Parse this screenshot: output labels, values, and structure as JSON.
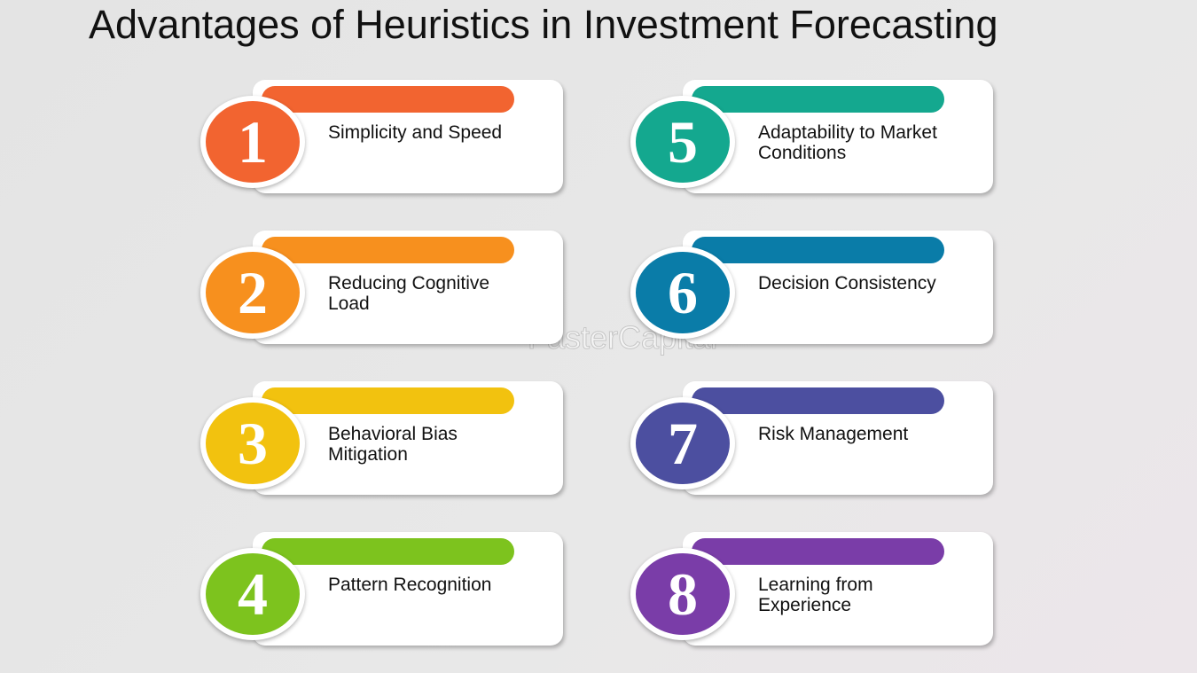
{
  "title": "Advantages of Heuristics in Investment Forecasting",
  "watermark": "FasterCapital",
  "items": [
    {
      "number": 1,
      "label": "Simplicity and Speed",
      "color": "#f26430"
    },
    {
      "number": 2,
      "label": "Reducing Cognitive Load",
      "color": "#f7901e"
    },
    {
      "number": 3,
      "label": "Behavioral Bias Mitigation",
      "color": "#f2c20f"
    },
    {
      "number": 4,
      "label": "Pattern Recognition",
      "color": "#7dc31e"
    },
    {
      "number": 5,
      "label": "Adaptability to Market Conditions",
      "color": "#14a88f"
    },
    {
      "number": 6,
      "label": "Decision Consistency",
      "color": "#0a7ca8"
    },
    {
      "number": 7,
      "label": "Risk Management",
      "color": "#4c4fa0"
    },
    {
      "number": 8,
      "label": "Learning from Experience",
      "color": "#7a3da8"
    }
  ]
}
